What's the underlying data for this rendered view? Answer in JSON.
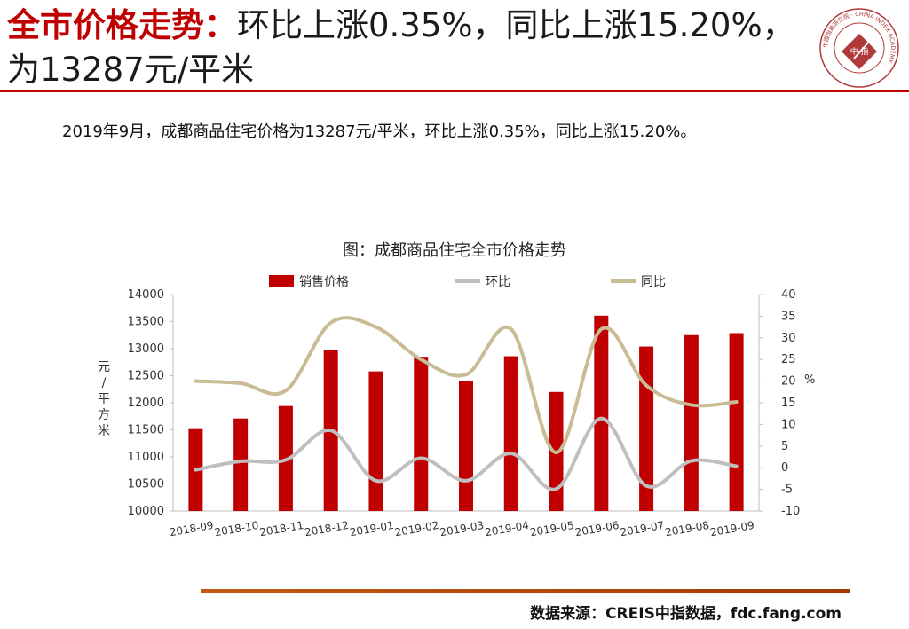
{
  "header": {
    "title_highlight": "全市价格走势：",
    "title_rest": "环比上涨0.35%，同比上涨15.20%，为13287元/平米"
  },
  "logo": {
    "center_text": "中  指",
    "ring_text": "中国指数研究院 · CHINA INDEX ACADEMY"
  },
  "summary": "2019年9月，成都商品住宅价格为13287元/平米，环比上涨0.35%，同比上涨15.20%。",
  "chart_title": "图：成都商品住宅全市价格走势",
  "footer": {
    "source": "数据来源：CREIS中指数据，fdc.fang.com"
  },
  "colors": {
    "accent": "#c00000",
    "mom": "#bfbfbf",
    "yoy": "#c9bc94",
    "rule": "#c55a11"
  },
  "chart_data": {
    "type": "bar",
    "categories": [
      "2018-09",
      "2018-10",
      "2018-11",
      "2018-12",
      "2019-01",
      "2019-02",
      "2019-03",
      "2019-04",
      "2019-05",
      "2019-06",
      "2019-07",
      "2019-08",
      "2019-09"
    ],
    "series": [
      {
        "name": "销售价格",
        "type": "bar",
        "axis": "left",
        "color": "#c00000",
        "values": [
          11530,
          11710,
          11940,
          12970,
          12580,
          12850,
          12410,
          12860,
          12200,
          13610,
          13040,
          13250,
          13287
        ]
      },
      {
        "name": "环比",
        "type": "line",
        "axis": "right",
        "color": "#bfbfbf",
        "values": [
          -0.5,
          1.5,
          1.8,
          8.6,
          -3.0,
          2.2,
          -3.0,
          3.3,
          -4.9,
          11.4,
          -4.2,
          1.6,
          0.35
        ]
      },
      {
        "name": "同比",
        "type": "line",
        "axis": "right",
        "color": "#c9bc94",
        "values": [
          20,
          19.5,
          17.8,
          33.5,
          32.5,
          25,
          21.5,
          32,
          3.5,
          32,
          19,
          14.5,
          15.2
        ]
      }
    ],
    "y_left": {
      "label": "元/平方米",
      "min": 10000,
      "max": 14000,
      "ticks": [
        "10000",
        "10500",
        "11000",
        "11500",
        "12000",
        "12500",
        "13000",
        "13500",
        "14000"
      ]
    },
    "y_right": {
      "label": "%",
      "min": -10,
      "max": 40,
      "ticks": [
        "-10",
        "-5",
        "0",
        "5",
        "10",
        "15",
        "20",
        "25",
        "30",
        "35",
        "40"
      ]
    },
    "legend_position": "top",
    "grid": false
  }
}
